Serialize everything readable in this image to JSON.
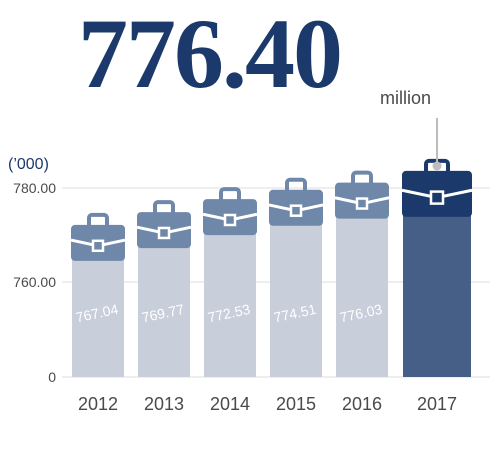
{
  "headline": {
    "value": "776.40",
    "unit": "million"
  },
  "chart_data": {
    "type": "bar",
    "ylabel": "(’000)",
    "categories": [
      "2012",
      "2013",
      "2014",
      "2015",
      "2016",
      "2017"
    ],
    "values": [
      767.04,
      769.77,
      772.53,
      774.51,
      776.03,
      776.4
    ],
    "value_labels": [
      "767.04",
      "769.77",
      "772.53",
      "774.51",
      "776.03",
      ""
    ],
    "y_ticks": [
      "780.00",
      "760.00",
      "0"
    ],
    "axis_break": true,
    "grid": true,
    "highlight_index": 5,
    "colors": {
      "bar": "#c8ceda",
      "bar_highlight": "#455f87",
      "briefcase": "#6f87a9",
      "briefcase_highlight": "#1b3a6b",
      "grid": "#dcdcdc",
      "connector": "#bdbdbd",
      "text": "#4a4a4a"
    }
  }
}
